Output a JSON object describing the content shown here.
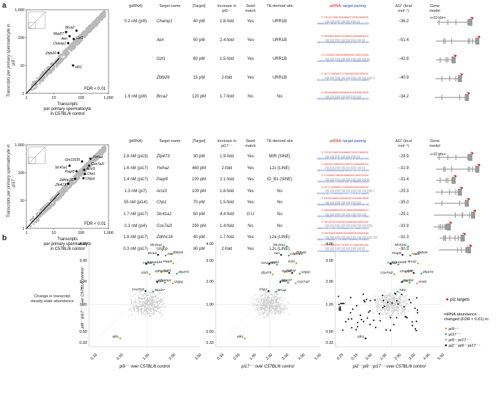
{
  "panel_a_letter": "a",
  "panel_b_letter": "b",
  "headers": {
    "pirna": "[piRNA]",
    "target_name": "Target name",
    "target_conc": "[Target]",
    "increase": "Increase in pi9⁻⁻",
    "increase_b": "Increase in pi17⁻⁻",
    "seed": "Seed match",
    "te": "TE-derived site",
    "pairing_prefix": "piRNA",
    "pairing_suffix": "–target pairing",
    "dg": "ΔG° (kcal mol⁻¹)",
    "gene": "Gene model"
  },
  "scatter1": {
    "ylabel": "Transcripts per primary spermatocyte in pi9⁻⁻",
    "xlabel": "Transcripts per primary spermatocyte in C57BL/6 control",
    "fdr": "FDR < 0.01",
    "ticks": [
      "1",
      "10",
      "100",
      "1,000"
    ],
    "labels": [
      "Brca2",
      "Mrpl27",
      "Aen",
      "Gzf1",
      "Champ1",
      "Zbtb26",
      "Idh1"
    ]
  },
  "scatter2": {
    "ylabel": "Transcripts per primary spermatocyte in pi17⁻⁻",
    "xlabel": "Transcripts per primary spermatocyte in C57BL/6 control",
    "fdr": "FDR < 0.01",
    "ticks": [
      "1",
      "10",
      "100",
      "1,000"
    ],
    "labels": [
      "Ywhaz",
      "Gm11635",
      "Cox7a2l",
      "Slc41a1",
      "Acsl3",
      "Paqr8",
      "Chp1",
      "Zdhhc16",
      "Urgcp",
      "Zfp473"
    ]
  },
  "scale_label": "10 kb",
  "rows_a": [
    {
      "pirna": "0.2 nM (pi9)",
      "name": "Champ1",
      "conc": "40 pM",
      "inc": "1.8-fold",
      "seed": "Yes",
      "te": "URR1B",
      "dg": "−36.2"
    },
    {
      "pirna": "",
      "name": "Aen",
      "conc": "50 pM",
      "inc": "2.4-fold",
      "seed": "Yes",
      "te": "URR1B",
      "dg": "−51.4"
    },
    {
      "pirna": "",
      "name": "Gzf1",
      "conc": "60 pM",
      "inc": "1.5-fold",
      "seed": "Yes",
      "te": "URR1B",
      "dg": "−42.8"
    },
    {
      "pirna": "",
      "name": "Zbtb26",
      "conc": "15 pM",
      "inc": "2-fold",
      "seed": "Yes",
      "te": "URR1B",
      "dg": "−40.9"
    },
    {
      "pirna": "1.9 nM (pi9)",
      "name": "Brca2",
      "conc": "120 pM",
      "inc": "1.7-fold",
      "seed": "No",
      "te": "No",
      "dg": "−34.2"
    }
  ],
  "rows_b": [
    {
      "pirna": "2.8 nM (pi15)",
      "name": "Zfp473",
      "conc": "30 pM",
      "inc": "1.9-fold",
      "seed": "Yes",
      "te": "MIR (SINE)",
      "dg": "−29.9"
    },
    {
      "pirna": "1.6 nM (pi17)",
      "name": "Ywhaz",
      "conc": "460 pM",
      "inc": "2-fold",
      "seed": "Yes",
      "te": "L2c (LINE)",
      "dg": "−31.9"
    },
    {
      "pirna": "1.4 nM (pi17)",
      "name": "Paqr8",
      "conc": "100 pM",
      "inc": "2.1-fold",
      "seed": "Yes",
      "te": "ID_B1 (SINE)",
      "dg": "−31.4"
    },
    {
      "pirna": "1.3 nM (pi7)",
      "name": "Acsl3",
      "conc": "100 pM",
      "inc": "1.8-fold",
      "seed": "Yes",
      "te": "No",
      "dg": "−25.3"
    },
    {
      "pirna": "55 nM (pi14)",
      "name": "Chp1",
      "conc": "70 pM",
      "inc": "1.5-fold",
      "seed": "Yes",
      "te": "No",
      "dg": "−35.0"
    },
    {
      "pirna": "1.7 nM (pi17)",
      "name": "Slc41a1",
      "conc": "50 pM",
      "inc": "4.4-fold",
      "seed": "G:U",
      "te": "No",
      "dg": "−29.1"
    },
    {
      "pirna": "0.3 nM (pi4)",
      "name": "Cox7a2l",
      "conc": "290 pM",
      "inc": "1.4-fold",
      "seed": "No",
      "te": "No",
      "dg": "−33.9"
    },
    {
      "pirna": "1.8 nM (pi17)",
      "name": "Zdhhc16",
      "conc": "40 pM",
      "inc": "1.7-fold",
      "seed": "Yes",
      "te": "L2a (LINE)",
      "dg": "−32.3"
    },
    {
      "pirna": "0.3 nM (pi17)",
      "name": "Urgcp",
      "conc": "90 pM",
      "inc": "2-fold",
      "seed": "Yes",
      "te": "L2c (LINE)",
      "dg": "−30.3"
    }
  ],
  "panel_b": {
    "ylabel_top": "Change in transcript steady-state abundance",
    "ylabel_axis": "pi9⁻⁻pi17⁻⁻ over C57BL/6 control",
    "yticks": [
      "4.00",
      "3.00",
      "2.00",
      "1.00",
      "0.50",
      "0.33"
    ],
    "x1": "pi9⁻⁻ over C57BL/6 control",
    "x2": "pi17⁻⁻ over C57BL/6 control",
    "x3": "pi2⁻⁻pi9⁻⁻pi17⁻⁻ over C57BL/6 control",
    "xticks1": [
      "0.33",
      "0.50",
      "1.00",
      "2.00",
      "3.00"
    ],
    "xticks2": [
      "0.33",
      "0.50",
      "1.00",
      "2.00",
      "3.00",
      "4.00",
      "5.00"
    ],
    "xticks3": [
      "0.25",
      "0.33",
      "0.50",
      "1.00",
      "2.00",
      "3.00",
      "4.00",
      "5.00"
    ],
    "p1_labels": [
      "Slc41a1",
      "Zbtb26",
      "Brca2",
      "Aen",
      "Paqr8",
      "Gm11635",
      "Ywhaz",
      "Acsl3",
      "Zdhhc16",
      "Zfp473",
      "Gzf1",
      "Champ1",
      "Chp1",
      "Urgcp",
      "Cox7a2l",
      "Mrpl27",
      "Idh1"
    ],
    "p2_labels": [
      "Slc41a1",
      "Zbtb26",
      "Aen",
      "Champ1",
      "Gzf1",
      "Acsl3",
      "Gm11635",
      "Ywhaz",
      "Paqr8",
      "Urgcp",
      "Zfp473",
      "Mrpl27",
      "Tdt2",
      "Cox7a2l",
      "Chp1",
      "Brca2",
      "Idh1"
    ],
    "p3_labels": [
      "Slc41a1",
      "Zbtb26",
      "Paqr8",
      "Acsl3",
      "Brca2",
      "Gm11635",
      "Ywhaz",
      "Aen",
      "Champ1",
      "Zfp473",
      "Cox7a2l",
      "Sectb2",
      "Gmi",
      "Gml2",
      "Idh1",
      "Tdt2"
    ],
    "pi2_targets": "pi2 targets",
    "legend_title": "mRNA abundance changed (FDR < 0.01) in:",
    "legend": [
      "pi9⁻⁻",
      "pi17⁻⁻",
      "pi9⁻⁻pi17⁻⁻",
      "pi2⁻⁻pi9⁻⁻pi17⁻⁻"
    ],
    "legend_colors": [
      "#e39a2b",
      "#32b04a",
      "#9aa0a6",
      "#111111"
    ]
  }
}
